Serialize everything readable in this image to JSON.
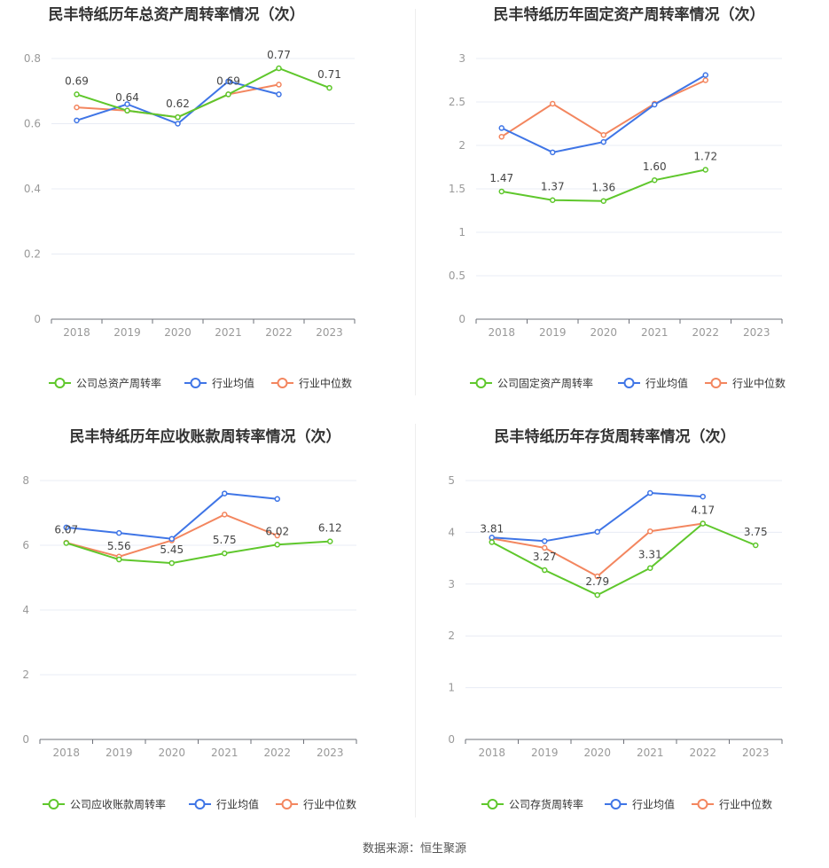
{
  "colors": {
    "company": "#5fc72c",
    "avg": "#3f75e6",
    "median": "#f3865f",
    "grid": "#e8ecf4",
    "axis": "#999999",
    "title": "#333333"
  },
  "footer": {
    "source": "数据来源：恒生聚源"
  },
  "chart_data": [
    {
      "type": "line",
      "title": "民丰特纸历年总资产周转率情况（次）",
      "categories": [
        "2018",
        "2019",
        "2020",
        "2021",
        "2022",
        "2023"
      ],
      "ylim": [
        0,
        0.8
      ],
      "yticks": [
        "0",
        "0.2",
        "0.4",
        "0.6",
        "0.8"
      ],
      "ytick_values": [
        0,
        0.2,
        0.4,
        0.6,
        0.8
      ],
      "legend_position": "bottom",
      "grid": true,
      "series": [
        {
          "name": "公司总资产周转率",
          "key": "company",
          "values": [
            0.69,
            0.64,
            0.62,
            0.69,
            0.77,
            0.71
          ],
          "labels": [
            "0.69",
            "0.64",
            "0.62",
            "0.69",
            "0.77",
            "0.71"
          ]
        },
        {
          "name": "行业均值",
          "key": "avg",
          "values": [
            0.61,
            0.66,
            0.6,
            0.73,
            0.69,
            null
          ]
        },
        {
          "name": "行业中位数",
          "key": "median",
          "values": [
            0.65,
            0.64,
            0.62,
            0.69,
            0.72,
            null
          ]
        }
      ]
    },
    {
      "type": "line",
      "title": "民丰特纸历年固定资产周转率情况（次）",
      "categories": [
        "2018",
        "2019",
        "2020",
        "2021",
        "2022",
        "2023"
      ],
      "ylim": [
        0,
        3
      ],
      "yticks": [
        "0",
        "0.5",
        "1",
        "1.5",
        "2",
        "2.5",
        "3"
      ],
      "ytick_values": [
        0,
        0.5,
        1,
        1.5,
        2,
        2.5,
        3
      ],
      "legend_position": "bottom",
      "grid": true,
      "series": [
        {
          "name": "公司固定资产周转率",
          "key": "company",
          "values": [
            1.47,
            1.37,
            1.36,
            1.6,
            1.72,
            null
          ],
          "labels": [
            "1.47",
            "1.37",
            "1.36",
            "1.60",
            "1.72",
            ""
          ]
        },
        {
          "name": "行业均值",
          "key": "avg",
          "values": [
            2.2,
            1.92,
            2.04,
            2.47,
            2.81,
            null
          ]
        },
        {
          "name": "行业中位数",
          "key": "median",
          "values": [
            2.1,
            2.48,
            2.12,
            2.48,
            2.75,
            null
          ]
        }
      ]
    },
    {
      "type": "line",
      "title": "民丰特纸历年应收账款周转率情况（次）",
      "categories": [
        "2018",
        "2019",
        "2020",
        "2021",
        "2022",
        "2023"
      ],
      "ylim": [
        0,
        8
      ],
      "yticks": [
        "0",
        "2",
        "4",
        "6",
        "8"
      ],
      "ytick_values": [
        0,
        2,
        4,
        6,
        8
      ],
      "legend_position": "bottom",
      "grid": true,
      "series": [
        {
          "name": "公司应收账款周转率",
          "key": "company",
          "values": [
            6.07,
            5.56,
            5.45,
            5.75,
            6.02,
            6.12
          ],
          "labels": [
            "6.07",
            "5.56",
            "5.45",
            "5.75",
            "6.02",
            "6.12"
          ]
        },
        {
          "name": "行业均值",
          "key": "avg",
          "values": [
            6.55,
            6.38,
            6.2,
            7.6,
            7.43,
            null
          ]
        },
        {
          "name": "行业中位数",
          "key": "median",
          "values": [
            6.08,
            5.65,
            6.15,
            6.95,
            6.3,
            null
          ]
        }
      ]
    },
    {
      "type": "line",
      "title": "民丰特纸历年存货周转率情况（次）",
      "categories": [
        "2018",
        "2019",
        "2020",
        "2021",
        "2022",
        "2023"
      ],
      "ylim": [
        0,
        5
      ],
      "yticks": [
        "0",
        "1",
        "2",
        "3",
        "4",
        "5"
      ],
      "ytick_values": [
        0,
        1,
        2,
        3,
        4,
        5
      ],
      "legend_position": "bottom",
      "grid": true,
      "series": [
        {
          "name": "公司存货周转率",
          "key": "company",
          "values": [
            3.81,
            3.27,
            2.79,
            3.31,
            4.17,
            3.75
          ],
          "labels": [
            "3.81",
            "3.27",
            "2.79",
            "3.31",
            "4.17",
            "3.75"
          ]
        },
        {
          "name": "行业均值",
          "key": "avg",
          "values": [
            3.9,
            3.83,
            4.01,
            4.76,
            4.69,
            null
          ]
        },
        {
          "name": "行业中位数",
          "key": "median",
          "values": [
            3.88,
            3.7,
            3.15,
            4.02,
            4.17,
            null
          ]
        }
      ]
    }
  ]
}
